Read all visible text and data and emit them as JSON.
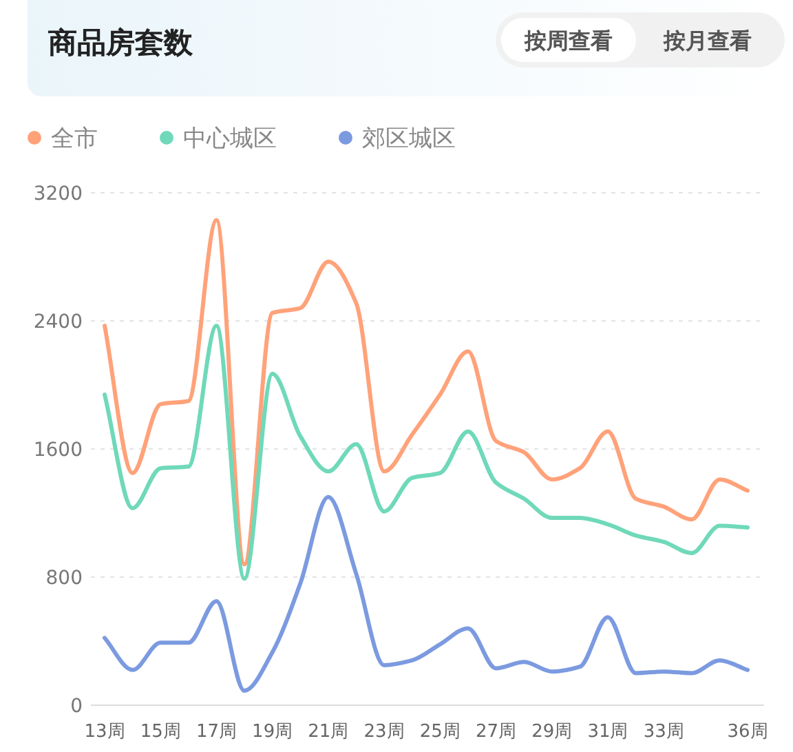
{
  "chart_data": {
    "type": "line",
    "title": "商品房套数",
    "annotations": [
      "按周查看",
      "按月查看"
    ],
    "categories": [
      "13周",
      null,
      "15周",
      null,
      "17周",
      null,
      "19周",
      null,
      "21周",
      null,
      "23周",
      null,
      "25周",
      null,
      "27周",
      null,
      "29周",
      null,
      "31周",
      null,
      "33周",
      null,
      null,
      "36周"
    ],
    "series": [
      {
        "name": "全市",
        "color": "#ffa27a",
        "values": [
          2370,
          1450,
          1880,
          1900,
          3030,
          880,
          2450,
          2480,
          2770,
          2510,
          1460,
          1690,
          1940,
          2210,
          1650,
          1580,
          1410,
          1480,
          1710,
          1290,
          1240,
          1160,
          1410,
          1340
        ]
      },
      {
        "name": "中心城区",
        "color": "#6fd9b9",
        "values": [
          1940,
          1230,
          1480,
          1490,
          2370,
          790,
          2070,
          1680,
          1460,
          1630,
          1210,
          1420,
          1450,
          1710,
          1390,
          1290,
          1170,
          1170,
          1130,
          1060,
          1020,
          950,
          1120,
          1110
        ]
      },
      {
        "name": "郊区城区",
        "color": "#7b9ae0",
        "values": [
          420,
          220,
          390,
          390,
          650,
          90,
          330,
          760,
          1300,
          820,
          250,
          280,
          380,
          480,
          230,
          270,
          210,
          240,
          550,
          200,
          210,
          200,
          280,
          220
        ]
      }
    ],
    "ylim": [
      0,
      3200
    ],
    "yticks": [
      0,
      800,
      1600,
      2400,
      3200
    ],
    "grid": "y",
    "legend": "top left"
  }
}
